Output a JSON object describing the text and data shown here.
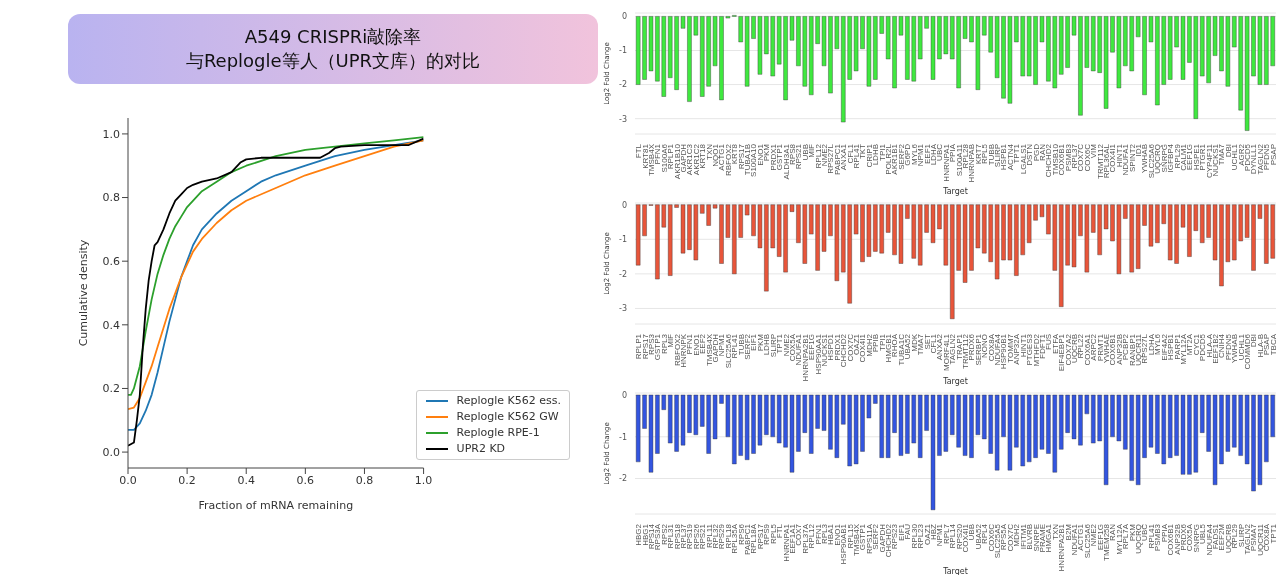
{
  "chart_data": [
    {
      "type": "line",
      "title": "A549 CRISPRi敲除率",
      "subtitle": "与Replogle等人（UPR文库）的对比",
      "xlabel": "Fraction of mRNA remaining",
      "ylabel": "Cumulative density",
      "xlim": [
        0,
        1
      ],
      "ylim": [
        -0.05,
        1.05
      ],
      "xticks": [
        {
          "value": 0,
          "label": "0.0"
        },
        0.2,
        0.4,
        0.6,
        0.8,
        {
          "value": 1,
          "label": "1.0"
        }
      ],
      "yticks": [
        {
          "value": 0,
          "label": "0.0"
        },
        0.2,
        0.4,
        0.6,
        0.8,
        {
          "value": 1,
          "label": "1.0"
        }
      ],
      "legend": "bottom right",
      "series": [
        {
          "name": "Replogle K562 ess.",
          "color": "#1f77b4",
          "x": [
            0,
            0.02,
            0.04,
            0.06,
            0.08,
            0.1,
            0.12,
            0.14,
            0.16,
            0.18,
            0.2,
            0.22,
            0.25,
            0.3,
            0.35,
            0.4,
            0.45,
            0.5,
            0.6,
            0.7,
            0.8,
            0.9,
            1.0
          ],
          "values": [
            0.07,
            0.07,
            0.09,
            0.13,
            0.18,
            0.25,
            0.33,
            0.41,
            0.48,
            0.55,
            0.6,
            0.65,
            0.7,
            0.75,
            0.79,
            0.82,
            0.85,
            0.87,
            0.9,
            0.93,
            0.95,
            0.965,
            0.98
          ]
        },
        {
          "name": "Replogle K562 GW",
          "color": "#ff7f0e",
          "x": [
            0,
            0.02,
            0.04,
            0.06,
            0.08,
            0.1,
            0.12,
            0.14,
            0.16,
            0.18,
            0.2,
            0.22,
            0.25,
            0.3,
            0.35,
            0.4,
            0.5,
            0.6,
            0.7,
            0.8,
            0.9,
            1.0
          ],
          "values": [
            0.135,
            0.14,
            0.17,
            0.22,
            0.27,
            0.33,
            0.39,
            0.45,
            0.5,
            0.55,
            0.59,
            0.63,
            0.67,
            0.72,
            0.76,
            0.79,
            0.83,
            0.87,
            0.9,
            0.93,
            0.96,
            0.98
          ]
        },
        {
          "name": "Replogle RPE-1",
          "color": "#2ca02c",
          "x": [
            0,
            0.01,
            0.02,
            0.04,
            0.06,
            0.08,
            0.1,
            0.12,
            0.14,
            0.16,
            0.18,
            0.2,
            0.25,
            0.3,
            0.35,
            0.4,
            0.5,
            0.6,
            0.7,
            0.8,
            0.9,
            1.0
          ],
          "values": [
            0.18,
            0.18,
            0.2,
            0.27,
            0.38,
            0.48,
            0.56,
            0.62,
            0.67,
            0.71,
            0.74,
            0.77,
            0.82,
            0.85,
            0.88,
            0.9,
            0.93,
            0.95,
            0.96,
            0.97,
            0.98,
            0.99
          ]
        },
        {
          "name": "UPR2 KD",
          "color": "#000000",
          "x": [
            0,
            0.02,
            0.03,
            0.04,
            0.05,
            0.06,
            0.07,
            0.08,
            0.09,
            0.1,
            0.12,
            0.14,
            0.16,
            0.18,
            0.2,
            0.22,
            0.25,
            0.3,
            0.35,
            0.38,
            0.4,
            0.45,
            0.6,
            0.65,
            0.68,
            0.7,
            0.72,
            0.8,
            0.95,
            1.0
          ],
          "values": [
            0.02,
            0.03,
            0.1,
            0.18,
            0.33,
            0.45,
            0.54,
            0.6,
            0.65,
            0.66,
            0.7,
            0.75,
            0.79,
            0.81,
            0.83,
            0.84,
            0.85,
            0.86,
            0.88,
            0.91,
            0.92,
            0.925,
            0.925,
            0.925,
            0.94,
            0.955,
            0.96,
            0.965,
            0.965,
            0.985
          ]
        }
      ]
    },
    {
      "type": "bar",
      "xlabel": "Target",
      "ylabel": "Log2 Fold Change",
      "color": "#3fe83f",
      "grid": "y",
      "ylim": [
        -3.45,
        0.1
      ],
      "yticks": [
        0,
        -1,
        -2,
        -3
      ],
      "categories": [
        "FTL",
        "KRT81",
        "TMSB4X",
        "PFN1",
        "S100A6",
        "RPLP1",
        "AKR1B10",
        "GAPDH",
        "AKR1C3",
        "AKR1C2",
        "KRT18",
        "TXN",
        "NQO1",
        "ACTG1",
        "RBFOX2",
        "KRT8",
        "RPS17",
        "TUBA1B",
        "S100A10",
        "ENO1",
        "PKM",
        "PRDX1",
        "GSTP1",
        "ALDH3A1",
        "RPS8",
        "RPS21",
        "UBB",
        "MIF",
        "RPL12",
        "NME2",
        "RPS27L",
        "PABPC1",
        "ANXA1",
        "CFL1",
        "RPL41",
        "TKT",
        "CRIP1",
        "LDHB",
        "TPI1",
        "POLR2L",
        "AKR1B1",
        "SERF2",
        "G6PD",
        "MYL6",
        "NPM1",
        "EEF1",
        "LDHA",
        "UBC",
        "HNRNPA1",
        "PPIA",
        "S100A11",
        "RPL28",
        "HNRNPAB",
        "KRT7",
        "RPL5",
        "TUBB",
        "SLIRP",
        "HSPB1",
        "ACTN4",
        "TPT1",
        "LGALS1",
        "DSTN",
        "PGD",
        "RAN",
        "CHCHD2",
        "TMSB10",
        "COX6B1",
        "PSMB3",
        "RPL37",
        "COX7C",
        "COX6C",
        "VIM",
        "TRMT112",
        "RPL36AL",
        "COX4I1",
        "HINT1",
        "NDUFA1",
        "SPINT2",
        "ID1",
        "YWHAB",
        "SLC25A6",
        "UQCRQ",
        "SNRPG",
        "IGFBP4",
        "RPL29",
        "CALM1",
        "EEF1G",
        "HSPE1",
        "PTGR1",
        "CYP4F11",
        "NUCKS1",
        "TMA7",
        "DBI",
        "UCHL1",
        "AGR2",
        "PDCD5",
        "DYNLL1",
        "TAGLN2",
        "PFDN5",
        "PSAP"
      ],
      "values": [
        -2.0,
        -1.85,
        -1.6,
        -1.9,
        -2.35,
        -1.8,
        -2.15,
        -0.35,
        -2.5,
        -0.55,
        -2.35,
        -2.05,
        -1.45,
        -2.45,
        -0.05,
        0.03,
        -0.75,
        -2.05,
        -0.65,
        -1.7,
        -1.1,
        -1.75,
        -1.4,
        -2.45,
        -0.7,
        -1.45,
        -2.05,
        -2.3,
        -0.8,
        -1.45,
        -2.25,
        -0.95,
        -3.1,
        -1.85,
        -1.6,
        -0.95,
        -2.05,
        -1.85,
        -0.5,
        -1.25,
        -2.1,
        -0.55,
        -1.85,
        -1.9,
        -1.25,
        -0.35,
        -1.85,
        -1.25,
        -1.1,
        -1.25,
        -2.1,
        -0.65,
        -0.75,
        -2.15,
        -0.55,
        -1.05,
        -1.8,
        -2.4,
        -2.55,
        -0.75,
        -1.75,
        -1.75,
        -2.0,
        -0.75,
        -1.9,
        -2.1,
        -1.7,
        -1.5,
        -0.55,
        -2.9,
        -1.5,
        -1.6,
        -1.65,
        -2.7,
        -1.05,
        -2.1,
        -1.45,
        -1.6,
        -0.6,
        -2.3,
        -0.75,
        -2.6,
        -2.0,
        -1.85,
        -0.9,
        -1.85,
        -1.35,
        -3.0,
        -1.75,
        -1.95,
        -1.15,
        -1.6,
        -2.05,
        -0.9,
        -2.75,
        -3.35,
        -1.75,
        -2.0,
        -2.0,
        -1.45
      ]
    },
    {
      "type": "bar",
      "xlabel": "Target",
      "ylabel": "Log2 Fold Change",
      "color": "#e8553a",
      "grid": "y",
      "ylim": [
        -3.45,
        0.05
      ],
      "yticks": [
        0,
        -1,
        -2,
        -3
      ],
      "categories": [
        "RPLP1",
        "RPS17",
        "RPS3",
        "GSTP1",
        "RPL3",
        "MIF",
        "RBFOX2",
        "HNRNPK",
        "PFN1",
        "ENO1",
        "EEF2",
        "TMSB4X",
        "GAPDH",
        "NPM1",
        "SLC25A6",
        "RPL41",
        "TUBB",
        "SERF2",
        "EIF1",
        "PKM",
        "LDHB",
        "SLIRP",
        "TPT1",
        "NME2",
        "COX5A",
        "NDUFA1",
        "HNRNPA2B1",
        "EEF1G",
        "HSP90AA1",
        "NUCKS1",
        "HSPD1",
        "PRDX1",
        "CHCHD2",
        "COX7C",
        "OAZ1",
        "COX4I1",
        "MDH2",
        "PPIB",
        "TPI1",
        "HMGB1",
        "RHOA",
        "TUBA1C",
        "UBA52",
        "MDK",
        "TMA7",
        "SET",
        "CFL1",
        "ANXA2",
        "MORF4L1",
        "TAGLN2",
        "TRAP1",
        "TRMT112",
        "PRDX6",
        "SERBP1",
        "NONO",
        "COX8A",
        "NDUFA4",
        "HSP90B1",
        "TOMM7",
        "ANP32A",
        "HINT1",
        "PTGES3",
        "MTHFD2",
        "FDFT1",
        "FUS",
        "ETFA",
        "EIF4EBP1",
        "COX7A2",
        "UQCRB",
        "RPL22",
        "COX6A1",
        "ARPC2",
        "PRMT1",
        "YWHAE",
        "COX6B1",
        "ANP32B",
        "PCBP2",
        "RANBP1",
        "UQCR11",
        "RPS27L",
        "LDHA",
        "MYL6",
        "EIF4A2",
        "HSPB1",
        "PARP1",
        "MYL12A",
        "MT2A",
        "CYC1",
        "PDCD5",
        "HLA-A",
        "EEF1B2",
        "CNIH4",
        "PFDN5",
        "YWHAB",
        "UCHL1",
        "COMMD6",
        "DBI",
        "HLA-B",
        "PSAP",
        "TBCA"
      ],
      "values": [
        -1.75,
        -0.9,
        -0.02,
        -2.15,
        -0.65,
        -2.05,
        -0.08,
        -1.4,
        -1.3,
        -1.6,
        -0.25,
        -0.6,
        -0.1,
        -1.7,
        -0.95,
        -2.0,
        -0.95,
        -0.3,
        -0.9,
        -1.25,
        -2.5,
        -1.25,
        -1.5,
        -1.95,
        -0.2,
        -1.1,
        -1.7,
        -0.85,
        -1.9,
        -1.35,
        -0.9,
        -2.2,
        -1.95,
        -2.85,
        -0.85,
        -1.65,
        -1.5,
        -1.35,
        -1.4,
        -0.8,
        -1.45,
        -1.7,
        -0.4,
        -1.55,
        -1.75,
        -0.8,
        -1.1,
        -0.7,
        -1.75,
        -3.3,
        -1.9,
        -2.25,
        -1.9,
        -1.25,
        -1.4,
        -1.65,
        -2.15,
        -1.6,
        -1.6,
        -2.05,
        -1.45,
        -1.1,
        -0.45,
        -0.35,
        -0.85,
        -1.9,
        -2.95,
        -1.75,
        -1.8,
        -0.9,
        -1.95,
        -0.8,
        -1.45,
        -0.7,
        -1.05,
        -2.0,
        -0.4,
        -1.95,
        -1.85,
        -0.6,
        -1.2,
        -1.1,
        -0.55,
        -1.6,
        -1.7,
        -0.65,
        -1.5,
        -0.75,
        -1.1,
        -0.95,
        -1.6,
        -2.35,
        -1.65,
        -1.6,
        -1.05,
        -0.95,
        -1.9,
        -0.4,
        -1.7,
        -1.55
      ]
    },
    {
      "type": "bar",
      "xlabel": "Target",
      "ylabel": "Log2 Fold Change",
      "color": "#3355e0",
      "grid": "y",
      "ylim": [
        -2.85,
        0.05
      ],
      "yticks": [
        0,
        -1,
        -2
      ],
      "categories": [
        "HBG2",
        "HBG1",
        "RPS14",
        "RPS3A",
        "RPS2",
        "RPL31",
        "RPS18",
        "RPL37",
        "RPS19",
        "RPS26",
        "RPS21",
        "RPL11",
        "RPL32",
        "RPS29",
        "RPL18",
        "RPL35A",
        "RPS6",
        "PABPC1",
        "RPL18A",
        "RPS17",
        "RPS9",
        "RPL5",
        "FTL",
        "HNRNPA1",
        "EEF1A1",
        "COX7",
        "RPL37A",
        "RPL12",
        "PFN1",
        "RPL3",
        "HBA1",
        "ENO1",
        "HSP90AB1",
        "RPL15",
        "TMSB4X",
        "GSTP1",
        "RPS11A",
        "SERF2",
        "GAPDH",
        "CHCHD2",
        "RPS23",
        "EIF1",
        "FAU",
        "RPL30",
        "RPL23",
        "OAZ1",
        "HBZ",
        "NPM1",
        "RPL7",
        "RPL14",
        "RPS20",
        "COX4I1",
        "UBB",
        "UBA52",
        "RPL4",
        "COX6C",
        "SLC25A5",
        "RPS5A",
        "COX7C",
        "MDH2",
        "IFITM1",
        "BLVRB",
        "SNRPE",
        "PRAME",
        "HMGA1",
        "TXN",
        "HNRNPA2B1",
        "B2M",
        "NDUFA1",
        "ACTG1",
        "SLC25A6",
        "NME2",
        "EEF1G",
        "TMEM258",
        "RAN",
        "MYL12A",
        "RPL7A",
        "PKM",
        "UQCRQ",
        "UBC",
        "RPL41",
        "PSMB3",
        "PPIA",
        "COX6B1",
        "ANP32B",
        "PRDX6",
        "COX5A",
        "SNRPG",
        "UBL5",
        "NDUFA4",
        "FADS1",
        "EEF2M",
        "UQCRB",
        "RPL29",
        "SLIRP",
        "TAGLN2",
        "PSMA7",
        "UQCR11",
        "COX8A",
        "TPT1"
      ],
      "values": [
        -1.6,
        -0.8,
        -1.85,
        -1.4,
        -0.35,
        -1.15,
        -1.35,
        -1.2,
        -0.9,
        -0.95,
        -0.75,
        -1.4,
        -1.05,
        -0.2,
        -1.0,
        -1.65,
        -1.45,
        -1.55,
        -1.4,
        -1.2,
        -0.95,
        -1.0,
        -1.15,
        -1.25,
        -1.85,
        -1.35,
        -0.9,
        -1.4,
        -0.8,
        -0.85,
        -1.3,
        -1.5,
        -0.7,
        -1.7,
        -1.65,
        -1.35,
        -0.55,
        -0.2,
        -1.5,
        -1.5,
        -0.9,
        -1.45,
        -1.4,
        -1.15,
        -1.5,
        -0.85,
        -2.75,
        -1.45,
        -1.35,
        -0.95,
        -1.25,
        -1.45,
        -1.5,
        -0.95,
        -1.05,
        -1.4,
        -1.8,
        -1.0,
        -1.8,
        -1.25,
        -1.7,
        -1.6,
        -1.5,
        -1.3,
        -1.4,
        -1.85,
        -1.3,
        -0.9,
        -1.05,
        -1.2,
        -0.45,
        -1.15,
        -1.1,
        -2.15,
        -1.0,
        -1.1,
        -1.3,
        -2.05,
        -2.15,
        -1.5,
        -1.25,
        -1.4,
        -1.65,
        -1.5,
        -1.45,
        -1.9,
        -1.9,
        -1.85,
        -0.9,
        -1.35,
        -2.15,
        -1.65,
        -1.35,
        -1.25,
        -1.45,
        -1.65,
        -2.3,
        -2.15,
        -1.6,
        -1.0
      ]
    }
  ]
}
